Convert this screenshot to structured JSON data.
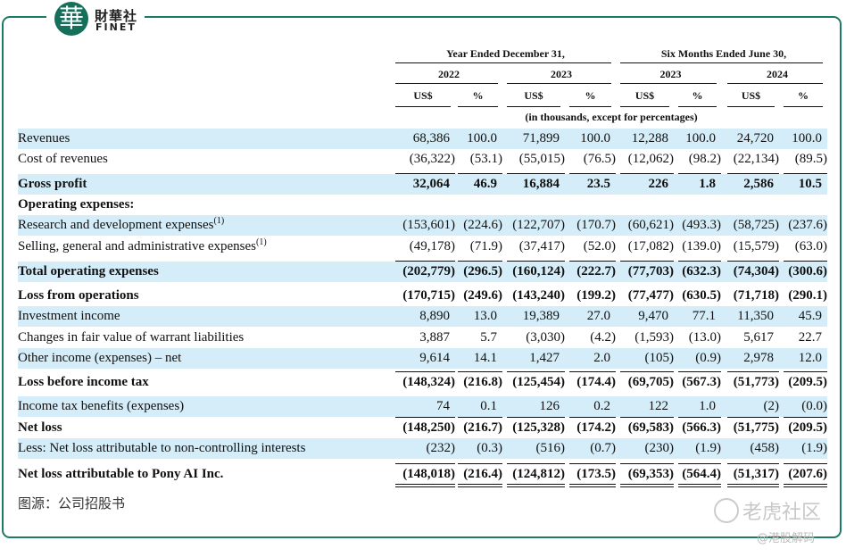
{
  "header": {
    "logo_char": "華",
    "logo_cn": "財華社",
    "logo_en": "FINET"
  },
  "table": {
    "groups": [
      "Year Ended December 31,",
      "Six Months Ended June 30,"
    ],
    "years": [
      "2022",
      "2023",
      "2023",
      "2024"
    ],
    "units": [
      "US$",
      "%",
      "US$",
      "%",
      "US$",
      "%",
      "US$",
      "%"
    ],
    "note": "(in thousands, except for percentages)",
    "rows": [
      {
        "label": "Revenues",
        "shaded": true,
        "values": [
          "68,386",
          "100.0",
          "71,899",
          "100.0",
          "12,288",
          "100.0",
          "24,720",
          "100.0"
        ]
      },
      {
        "label": "Cost of revenues",
        "values": [
          "(36,322)",
          "(53.1)",
          "(55,015)",
          "(76.5)",
          "(12,062)",
          "(98.2)",
          "(22,134)",
          "(89.5)"
        ]
      },
      {
        "label": "Gross profit",
        "bold": true,
        "shaded": true,
        "values": [
          "32,064",
          "46.9",
          "16,884",
          "23.5",
          "226",
          "1.8",
          "2,586",
          "10.5"
        ]
      },
      {
        "label": "Operating expenses:",
        "bold": true,
        "values": []
      },
      {
        "label": "Research and development expenses",
        "sup": "(1)",
        "shaded": true,
        "values": [
          "(153,601)",
          "(224.6)",
          "(122,707)",
          "(170.7)",
          "(60,621)",
          "(493.3)",
          "(58,725)",
          "(237.6)"
        ]
      },
      {
        "label": "Selling, general and administrative expenses",
        "sup": "(1)",
        "values": [
          "(49,178)",
          "(71.9)",
          "(37,417)",
          "(52.0)",
          "(17,082)",
          "(139.0)",
          "(15,579)",
          "(63.0)"
        ]
      },
      {
        "label": "Total operating expenses",
        "bold": true,
        "shaded": true,
        "values": [
          "(202,779)",
          "(296.5)",
          "(160,124)",
          "(222.7)",
          "(77,703)",
          "(632.3)",
          "(74,304)",
          "(300.6)"
        ]
      },
      {
        "label": "Loss from operations",
        "bold": true,
        "values": [
          "(170,715)",
          "(249.6)",
          "(143,240)",
          "(199.2)",
          "(77,477)",
          "(630.5)",
          "(71,718)",
          "(290.1)"
        ]
      },
      {
        "label": "Investment income",
        "shaded": true,
        "values": [
          "8,890",
          "13.0",
          "19,389",
          "27.0",
          "9,470",
          "77.1",
          "11,350",
          "45.9"
        ]
      },
      {
        "label": "Changes in fair value of warrant liabilities",
        "values": [
          "3,887",
          "5.7",
          "(3,030)",
          "(4.2)",
          "(1,593)",
          "(13.0)",
          "5,617",
          "22.7"
        ]
      },
      {
        "label": "Other income (expenses) – net",
        "shaded": true,
        "values": [
          "9,614",
          "14.1",
          "1,427",
          "2.0",
          "(105)",
          "(0.9)",
          "2,978",
          "12.0"
        ]
      },
      {
        "label": "Loss before income tax",
        "bold": true,
        "values": [
          "(148,324)",
          "(216.8)",
          "(125,454)",
          "(174.4)",
          "(69,705)",
          "(567.3)",
          "(51,773)",
          "(209.5)"
        ]
      },
      {
        "label": "Income tax benefits (expenses)",
        "shaded": true,
        "values": [
          "74",
          "0.1",
          "126",
          "0.2",
          "122",
          "1.0",
          "(2)",
          "(0.0)"
        ]
      },
      {
        "label": "Net loss",
        "bold": true,
        "values": [
          "(148,250)",
          "(216.7)",
          "(125,328)",
          "(174.2)",
          "(69,583)",
          "(566.3)",
          "(51,775)",
          "(209.5)"
        ]
      },
      {
        "label": "Less: Net loss attributable to non-controlling interests",
        "shaded": true,
        "values": [
          "(232)",
          "(0.3)",
          "(516)",
          "(0.7)",
          "(230)",
          "(1.9)",
          "(458)",
          "(1.9)"
        ]
      },
      {
        "label": "Net loss attributable to Pony AI Inc.",
        "bold": true,
        "values": [
          "(148,018)",
          "(216.4)",
          "(124,812)",
          "(173.5)",
          "(69,353)",
          "(564.4)",
          "(51,317)",
          "(207.6)"
        ]
      }
    ]
  },
  "footer": {
    "source": "图源：公司招股书",
    "watermark": "老虎社区",
    "handle": "@港股解码"
  }
}
